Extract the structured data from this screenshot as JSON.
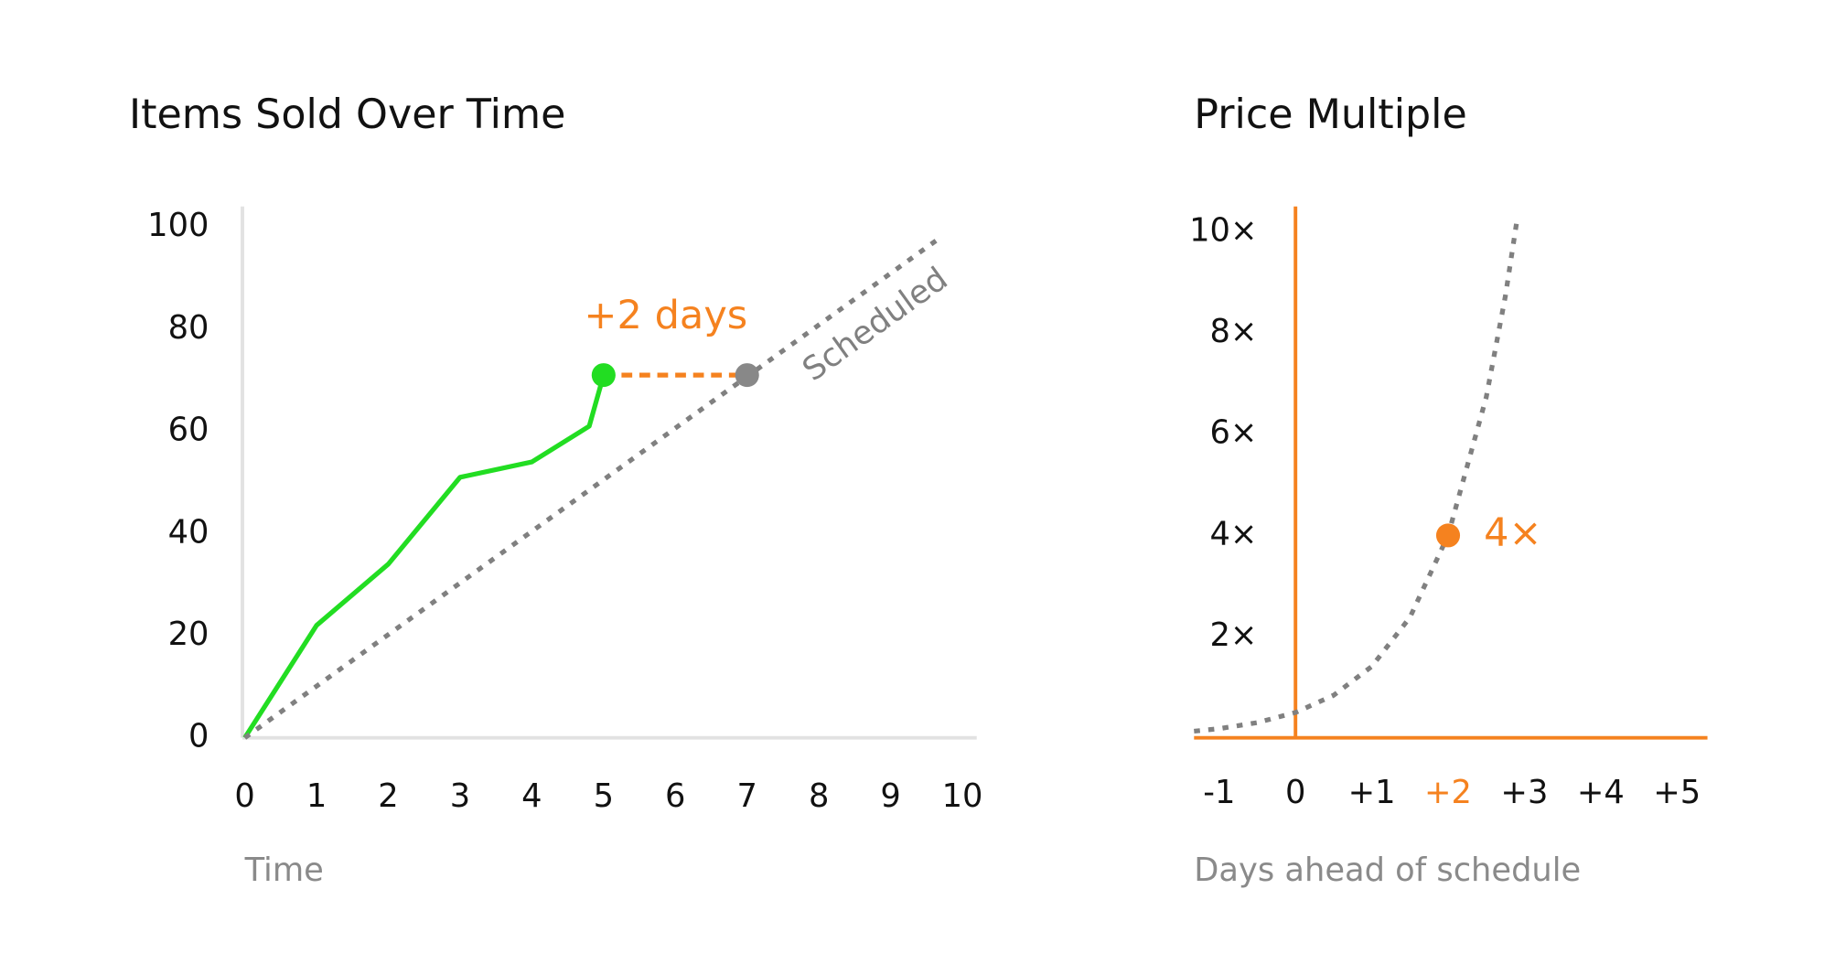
{
  "chart_data": [
    {
      "type": "line",
      "title": "Items Sold Over Time",
      "x_label": "Time",
      "xlim": [
        0,
        10.2
      ],
      "xticks": [
        0,
        1,
        2,
        3,
        4,
        5,
        6,
        7,
        8,
        9,
        10
      ],
      "ylim": [
        0,
        104
      ],
      "yticks": [
        0,
        20,
        40,
        60,
        80,
        100
      ],
      "axis_color": "#e2e2e2",
      "series": [
        {
          "color": "#22dd22",
          "x": [
            0,
            1,
            2,
            3,
            4,
            4.8,
            5
          ],
          "values": [
            0,
            22,
            34,
            51,
            54,
            61,
            71
          ]
        },
        {
          "name": "Scheduled",
          "color": "#808080",
          "dashed": true,
          "x": [
            0,
            9.7
          ],
          "values": [
            0,
            98
          ]
        }
      ],
      "markers": [
        {
          "x": 5,
          "y": 71,
          "color": "#22dd22"
        },
        {
          "x": 7,
          "y": 71,
          "color": "#888888"
        }
      ],
      "annotation": {
        "text": "+2 days",
        "color": "#f5821f",
        "x": [
          5,
          7
        ],
        "y": 71
      }
    },
    {
      "type": "line",
      "title": "Price Multiple",
      "x_label": "Days ahead of schedule",
      "xlim": [
        -1.33,
        5.4
      ],
      "xticks": [
        -1,
        0,
        {
          "value": 1,
          "label": "+1"
        },
        {
          "value": 2,
          "label": "+2",
          "color": "#f5821f"
        },
        {
          "value": 3,
          "label": "+3"
        },
        {
          "value": 4,
          "label": "+4"
        },
        {
          "value": 5,
          "label": "+5"
        }
      ],
      "ylim": [
        0,
        10.5
      ],
      "yticks": [
        {
          "value": 2,
          "label": "2×"
        },
        {
          "value": 4,
          "label": "4×"
        },
        {
          "value": 6,
          "label": "6×"
        },
        {
          "value": 8,
          "label": "8×"
        },
        {
          "value": 10,
          "label": "10×"
        }
      ],
      "axis_color": "#f5821f",
      "series": [
        {
          "color": "#808080",
          "dashed": true,
          "x": [
            -1.33,
            -1,
            -0.5,
            0,
            0.5,
            1,
            1.5,
            2,
            2.5,
            2.75,
            2.9
          ],
          "values": [
            0.13,
            0.18,
            0.3,
            0.5,
            0.84,
            1.41,
            2.38,
            4,
            6.73,
            8.72,
            10.2
          ]
        }
      ],
      "points": {
        "color": "#f5821f",
        "x": [
          2
        ],
        "values": [
          4
        ],
        "value_labels": [
          "4×"
        ]
      }
    }
  ]
}
